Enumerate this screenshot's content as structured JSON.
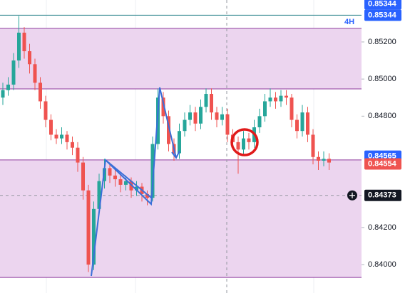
{
  "chart_data": {
    "type": "candlestick",
    "timeframe": "4H",
    "ylim": [
      0.83847,
      0.85426
    ],
    "yticks": [
      {
        "value": 0.84,
        "label": "0.84000"
      },
      {
        "value": 0.842,
        "label": "0.84200"
      },
      {
        "value": 0.848,
        "label": "0.84800"
      },
      {
        "value": 0.85,
        "label": "0.85000"
      },
      {
        "value": 0.852,
        "label": "0.85200"
      }
    ],
    "up_color": "#26a69a",
    "down_color": "#ef5350",
    "zones": [
      {
        "from": 0.84947,
        "to": 0.85273
      },
      {
        "from": 0.83931,
        "to": 0.84564
      }
    ],
    "zone_color": "#ecd5ef",
    "zone_line_color": "#8e3a9e",
    "level_line": 0.85344,
    "level_color": "#26808a",
    "crosshair": 0.84373,
    "price_labels": [
      {
        "value": 0.85344,
        "color": "#2962ff"
      },
      {
        "value": 0.85344,
        "color": "#2962ff"
      },
      {
        "value": 0.84565,
        "color": "#2962ff"
      },
      {
        "value": 0.84554,
        "color": "#ef5350"
      },
      {
        "value": 0.84373,
        "color": "#131722"
      }
    ],
    "ohlc": [
      [
        0.849,
        0.8498,
        0.8486,
        0.8494
      ],
      [
        0.8494,
        0.8501,
        0.8491,
        0.8497
      ],
      [
        0.8497,
        0.8514,
        0.8494,
        0.851
      ],
      [
        0.851,
        0.8534,
        0.8506,
        0.8525
      ],
      [
        0.8525,
        0.8528,
        0.8511,
        0.8515
      ],
      [
        0.8515,
        0.8519,
        0.8503,
        0.8508
      ],
      [
        0.8508,
        0.8511,
        0.8494,
        0.8498
      ],
      [
        0.8498,
        0.8501,
        0.8484,
        0.8488
      ],
      [
        0.8488,
        0.8491,
        0.8474,
        0.8478
      ],
      [
        0.8478,
        0.8481,
        0.8467,
        0.847
      ],
      [
        0.847,
        0.8473,
        0.8465,
        0.8468
      ],
      [
        0.8468,
        0.8474,
        0.8465,
        0.847
      ],
      [
        0.847,
        0.8472,
        0.8462,
        0.8466
      ],
      [
        0.8466,
        0.8469,
        0.8459,
        0.8463
      ],
      [
        0.8463,
        0.8466,
        0.845,
        0.8455
      ],
      [
        0.8455,
        0.8458,
        0.8435,
        0.844
      ],
      [
        0.844,
        0.8443,
        0.8396,
        0.84
      ],
      [
        0.84,
        0.8434,
        0.8397,
        0.843
      ],
      [
        0.843,
        0.8449,
        0.8427,
        0.8445
      ],
      [
        0.8445,
        0.8457,
        0.8441,
        0.8452
      ],
      [
        0.8452,
        0.8455,
        0.8444,
        0.8448
      ],
      [
        0.8448,
        0.8451,
        0.8442,
        0.8446
      ],
      [
        0.8446,
        0.8449,
        0.8439,
        0.8443
      ],
      [
        0.8443,
        0.8448,
        0.844,
        0.8445
      ],
      [
        0.8445,
        0.8447,
        0.8436,
        0.844
      ],
      [
        0.844,
        0.8445,
        0.8437,
        0.8442
      ],
      [
        0.8442,
        0.8444,
        0.8434,
        0.8438
      ],
      [
        0.8438,
        0.844,
        0.8432,
        0.8436
      ],
      [
        0.8436,
        0.8469,
        0.8434,
        0.8465
      ],
      [
        0.8465,
        0.8495,
        0.8462,
        0.849
      ],
      [
        0.849,
        0.8493,
        0.8476,
        0.848
      ],
      [
        0.848,
        0.8483,
        0.8461,
        0.8465
      ],
      [
        0.8465,
        0.8468,
        0.8456,
        0.846
      ],
      [
        0.846,
        0.8476,
        0.8457,
        0.8472
      ],
      [
        0.8472,
        0.8482,
        0.8469,
        0.8478
      ],
      [
        0.8478,
        0.8486,
        0.8475,
        0.8482
      ],
      [
        0.8482,
        0.8485,
        0.8472,
        0.8476
      ],
      [
        0.8476,
        0.8489,
        0.8473,
        0.8485
      ],
      [
        0.8485,
        0.8495,
        0.8482,
        0.8492
      ],
      [
        0.8492,
        0.8495,
        0.8478,
        0.8482
      ],
      [
        0.8482,
        0.8485,
        0.8474,
        0.8478
      ],
      [
        0.8478,
        0.8485,
        0.8475,
        0.8481
      ],
      [
        0.8481,
        0.8484,
        0.8466,
        0.847
      ],
      [
        0.847,
        0.8473,
        0.8462,
        0.8466
      ],
      [
        0.8466,
        0.8469,
        0.8449,
        0.8462
      ],
      [
        0.8462,
        0.8472,
        0.8459,
        0.8468
      ],
      [
        0.8468,
        0.8471,
        0.8462,
        0.8466
      ],
      [
        0.8466,
        0.8478,
        0.8463,
        0.8474
      ],
      [
        0.8474,
        0.8484,
        0.8471,
        0.848
      ],
      [
        0.848,
        0.8492,
        0.8477,
        0.8488
      ],
      [
        0.8488,
        0.8495,
        0.8485,
        0.849
      ],
      [
        0.849,
        0.8493,
        0.8484,
        0.8488
      ],
      [
        0.8488,
        0.8494,
        0.8485,
        0.8491
      ],
      [
        0.8491,
        0.8494,
        0.8486,
        0.849
      ],
      [
        0.849,
        0.8492,
        0.8474,
        0.8478
      ],
      [
        0.8478,
        0.8481,
        0.8468,
        0.8472
      ],
      [
        0.8472,
        0.8486,
        0.8469,
        0.8482
      ],
      [
        0.8482,
        0.8485,
        0.8466,
        0.847
      ],
      [
        0.847,
        0.8473,
        0.8454,
        0.8458
      ],
      [
        0.8458,
        0.8461,
        0.8451,
        0.8456
      ],
      [
        0.8456,
        0.8461,
        0.8453,
        0.8457
      ],
      [
        0.8457,
        0.846,
        0.8451,
        0.8455
      ]
    ]
  }
}
